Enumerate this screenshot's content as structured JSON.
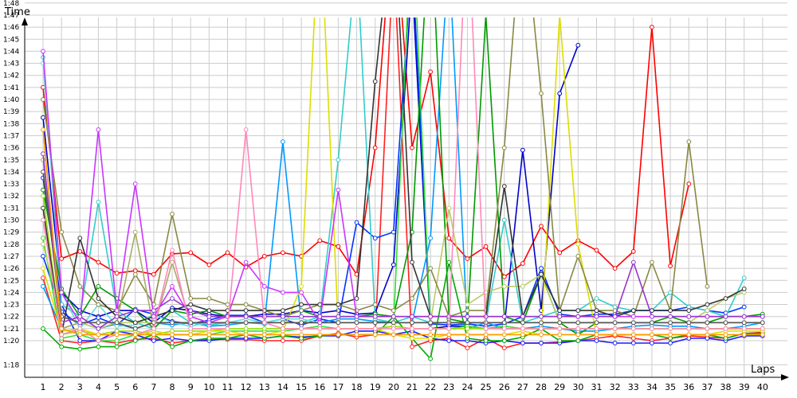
{
  "chart_data": {
    "type": "line",
    "y_axis_title": "Time",
    "x_axis_title": "Laps",
    "grid": true,
    "legend": "none",
    "x": [
      1,
      2,
      3,
      4,
      5,
      6,
      7,
      8,
      9,
      10,
      11,
      12,
      13,
      14,
      15,
      16,
      17,
      18,
      19,
      20,
      21,
      22,
      23,
      24,
      25,
      26,
      27,
      28,
      29,
      30,
      31,
      32,
      33,
      34,
      35,
      36,
      37,
      38,
      39,
      40
    ],
    "x_tick_labels": [
      "1",
      "2",
      "3",
      "4",
      "5",
      "6",
      "7",
      "8",
      "9",
      "10",
      "11",
      "12",
      "13",
      "14",
      "15",
      "16",
      "17",
      "18",
      "19",
      "20",
      "21",
      "22",
      "23",
      "24",
      "25",
      "26",
      "27",
      "28",
      "29",
      "30",
      "31",
      "32",
      "33",
      "34",
      "35",
      "36",
      "37",
      "38",
      "39",
      "40"
    ],
    "y_unit": "seconds",
    "ylim": [
      76,
      110
    ],
    "y_ticks": [
      78,
      80,
      81,
      82,
      83,
      84,
      85,
      86,
      87,
      88,
      89,
      90,
      91,
      92,
      93,
      94,
      95,
      96,
      97,
      98,
      99,
      100,
      101,
      102,
      103,
      104,
      105,
      106,
      107,
      108
    ],
    "y_tick_labels": [
      "1:18",
      "1:20",
      "1:21",
      "1:22",
      "1:23",
      "1:24",
      "1:25",
      "1:26",
      "1:27",
      "1:28",
      "1:29",
      "1:30",
      "1:31",
      "1:32",
      "1:33",
      "1:34",
      "1:35",
      "1:36",
      "1:37",
      "1:38",
      "1:39",
      "1:40",
      "1:41",
      "1:42",
      "1:43",
      "1:44",
      "1:45",
      "1:46",
      "1:47",
      "1:48"
    ],
    "series": [
      {
        "color": "#ff0000",
        "values": [
          101.0,
          86.8,
          87.4,
          86.5,
          85.6,
          85.8,
          85.5,
          87.2,
          87.3,
          86.3,
          87.3,
          86.1,
          87.0,
          87.3,
          87.0,
          88.3,
          87.8,
          85.5,
          96.0,
          116,
          96.0,
          102.3,
          88.5,
          86.8,
          87.8,
          85.3,
          86.4,
          89.5,
          87.3,
          88.3,
          87.5,
          86.0,
          87.4,
          106.0,
          86.2,
          93.0,
          null,
          null,
          null,
          null
        ]
      },
      {
        "color": "#ff2020",
        "values": [
          85.2,
          80.0,
          79.8,
          80.0,
          79.8,
          80.1,
          80.2,
          79.8,
          80.0,
          80.1,
          80.1,
          80.1,
          80.0,
          80.0,
          80.0,
          80.4,
          80.6,
          80.3,
          80.5,
          112,
          79.5,
          80.0,
          80.2,
          79.4,
          80.2,
          79.4,
          79.8,
          79.8,
          79.9,
          80.0,
          80.2,
          80.4,
          80.2,
          80.0,
          80.2,
          80.4,
          80.3,
          80.2,
          80.6,
          80.7
        ]
      },
      {
        "color": "#0000cc",
        "values": [
          98.5,
          84.0,
          82.5,
          82.0,
          82.5,
          82.5,
          81.5,
          82.7,
          82.5,
          82.2,
          82.0,
          82.0,
          82.2,
          82.2,
          82.5,
          82.3,
          82.5,
          82.2,
          82.3,
          86.3,
          110,
          81.0,
          81.2,
          81.2,
          81.0,
          81.2,
          95.8,
          82.5,
          100.5,
          104.5,
          null,
          null,
          null,
          null,
          null,
          null,
          null,
          null,
          null,
          null
        ]
      },
      {
        "color": "#0033ff",
        "values": [
          87.0,
          82.4,
          81.3,
          81.9,
          81.3,
          82.6,
          82.2,
          81.6,
          81.4,
          81.7,
          82.1,
          82.1,
          81.5,
          81.8,
          81.3,
          81.8,
          81.5,
          89.8,
          88.5,
          89.0,
          112,
          81.4,
          81.3,
          81.4,
          81.2,
          81.4,
          82.0,
          86.0,
          82.2,
          82.0,
          82.2,
          82.2,
          82.5,
          82.5,
          82.5,
          82.8,
          82.5,
          82.3,
          82.8,
          null
        ]
      },
      {
        "color": "#1a1aff",
        "values": [
          93.5,
          83.0,
          80.0,
          80.0,
          80.8,
          80.5,
          80.0,
          80.2,
          80.0,
          80.0,
          80.2,
          80.2,
          80.2,
          80.4,
          80.3,
          80.4,
          80.4,
          80.8,
          80.8,
          80.5,
          80.8,
          80.2,
          80.0,
          80.0,
          79.8,
          80.0,
          79.8,
          79.8,
          79.8,
          80.0,
          80.0,
          79.8,
          79.8,
          79.8,
          79.8,
          80.2,
          80.2,
          80.0,
          80.4,
          80.4
        ]
      },
      {
        "color": "#0099ff",
        "values": [
          84.5,
          81.0,
          81.5,
          81.0,
          81.4,
          81.0,
          81.5,
          81.3,
          81.5,
          81.2,
          81.3,
          81.5,
          81.4,
          96.5,
          81.5,
          81.5,
          81.8,
          81.8,
          81.6,
          81.5,
          81.5,
          88.5,
          112,
          81.0,
          81.5,
          81.0,
          81.0,
          81.2,
          81.0,
          80.8,
          80.8,
          81.0,
          81.2,
          81.3,
          81.2,
          81.2,
          81.0,
          81.0,
          81.2,
          81.5
        ]
      },
      {
        "color": "#33cccc",
        "values": [
          103.5,
          83.0,
          82.0,
          91.5,
          82.5,
          81.5,
          81.0,
          82.5,
          81.5,
          81.3,
          81.5,
          81.5,
          81.5,
          81.5,
          81.5,
          82.0,
          95.0,
          112,
          81.8,
          81.5,
          82.0,
          81.5,
          81.5,
          81.5,
          81.5,
          90.0,
          81.5,
          82.0,
          82.5,
          82.5,
          83.5,
          82.8,
          82.5,
          82.5,
          84.0,
          82.8,
          82.5,
          82.0,
          85.2,
          null
        ]
      },
      {
        "color": "#66dddd",
        "values": [
          103.0,
          84.0,
          81.0,
          83.0,
          81.2,
          81.3,
          82.2,
          81.5,
          81.2,
          81.5,
          81.5,
          81.8,
          81.5,
          81.8,
          81.8,
          81.5,
          81.5,
          81.5,
          81.5,
          81.5,
          81.5,
          81.5,
          81.5,
          81.5,
          81.5,
          81.5,
          81.5,
          81.5,
          81.5,
          81.5,
          81.5,
          81.5,
          81.5,
          81.5,
          81.5,
          81.5,
          81.5,
          81.5,
          81.5,
          81.5
        ]
      },
      {
        "color": "#009900",
        "values": [
          92.5,
          84.3,
          82.0,
          84.5,
          83.5,
          82.5,
          81.0,
          82.5,
          82.2,
          82.5,
          82.0,
          82.0,
          82.0,
          82.0,
          82.5,
          82.0,
          82.0,
          82.0,
          82.2,
          82.0,
          89.0,
          116,
          81.8,
          81.5,
          107.0,
          82.0,
          81.5,
          85.5,
          81.5,
          80.5,
          81.5,
          81.5,
          81.5,
          81.5,
          82.0,
          81.5,
          81.5,
          82.0,
          82.0,
          82.2
        ]
      },
      {
        "color": "#00aa00",
        "values": [
          81.0,
          79.5,
          79.3,
          79.5,
          79.5,
          80.0,
          80.5,
          79.5,
          80.0,
          80.2,
          80.2,
          80.5,
          80.2,
          80.4,
          80.2,
          80.4,
          80.5,
          80.5,
          80.5,
          82.0,
          80.2,
          78.5,
          86.5,
          80.2,
          80.0,
          80.0,
          80.3,
          81.0,
          80.0,
          80.0,
          80.5,
          80.5,
          80.5,
          80.5,
          80.2,
          80.5,
          80.5,
          80.2,
          80.6,
          80.6
        ]
      },
      {
        "color": "#33dd33",
        "values": [
          88.5,
          80.2,
          80.5,
          80.0,
          80.0,
          80.5,
          80.8,
          80.5,
          80.5,
          80.5,
          80.8,
          80.8,
          80.8,
          80.8,
          81.0,
          81.2,
          81.0,
          81.0,
          81.0,
          81.2,
          116,
          81.0,
          81.0,
          81.2,
          81.0,
          81.2,
          81.0,
          81.0,
          81.0,
          81.0,
          81.0,
          81.0,
          81.0,
          81.0,
          81.0,
          81.0,
          81.0,
          81.0,
          81.0,
          81.0
        ]
      },
      {
        "color": "#99dd00",
        "values": [
          92.0,
          80.5,
          80.8,
          80.5,
          80.8,
          80.8,
          80.5,
          80.8,
          80.8,
          80.8,
          81.0,
          81.0,
          81.0,
          81.0,
          81.0,
          81.0,
          81.0,
          81.0,
          81.0,
          81.2,
          81.0,
          81.0,
          81.0,
          81.0,
          81.0,
          81.0,
          81.0,
          81.0,
          81.0,
          81.0,
          81.0,
          81.0,
          81.0,
          81.0,
          81.0,
          81.0,
          81.0,
          81.0,
          81.0,
          81.0
        ]
      },
      {
        "color": "#dddd00",
        "values": [
          86.0,
          80.8,
          81.0,
          80.5,
          80.5,
          80.5,
          80.8,
          80.5,
          80.5,
          80.8,
          80.8,
          80.5,
          80.5,
          80.8,
          84.5,
          116,
          81.0,
          81.0,
          81.0,
          80.5,
          80.2,
          80.2,
          80.5,
          80.5,
          80.5,
          80.5,
          80.8,
          80.5,
          107.0,
          88.0,
          80.5,
          80.5,
          80.5,
          80.5,
          80.5,
          80.5,
          80.5,
          80.8,
          80.8,
          80.8
        ]
      },
      {
        "color": "#bbcc66",
        "values": [
          88.0,
          82.0,
          81.5,
          81.0,
          81.5,
          81.5,
          81.5,
          81.5,
          81.5,
          81.5,
          81.5,
          81.5,
          81.5,
          81.5,
          81.5,
          81.5,
          81.5,
          81.5,
          81.5,
          81.5,
          81.5,
          81.5,
          91.0,
          83.0,
          84.0,
          84.5,
          84.5,
          85.5,
          81.5,
          81.5,
          81.5,
          81.5,
          81.5,
          81.5,
          81.5,
          81.5,
          82.5,
          83.5,
          84.0,
          null
        ]
      },
      {
        "color": "#888844",
        "values": [
          100.0,
          89.0,
          84.5,
          83.0,
          82.5,
          85.5,
          83.0,
          90.5,
          83.5,
          83.5,
          83.0,
          83.0,
          82.5,
          82.0,
          82.5,
          83.0,
          83.0,
          82.5,
          83.0,
          82.5,
          83.5,
          86.0,
          82.0,
          82.5,
          82.5,
          96.0,
          116,
          100.5,
          82.5,
          87.0,
          82.5,
          82.5,
          82.0,
          86.5,
          82.5,
          96.5,
          84.5,
          null,
          null,
          null
        ]
      },
      {
        "color": "#aaaa66",
        "values": [
          95.0,
          81.0,
          81.5,
          81.5,
          81.5,
          89.0,
          81.0,
          86.5,
          81.5,
          81.5,
          81.5,
          81.5,
          81.5,
          81.5,
          81.5,
          81.5,
          81.5,
          81.5,
          81.5,
          81.5,
          81.5,
          81.5,
          81.5,
          81.5,
          81.5,
          81.5,
          81.5,
          81.5,
          81.5,
          81.5,
          81.5,
          81.5,
          81.5,
          81.5,
          81.5,
          81.5,
          81.5,
          81.5,
          81.5,
          81.5
        ]
      },
      {
        "color": "#333333",
        "values": [
          91.0,
          80.5,
          88.5,
          83.5,
          82.0,
          81.5,
          82.0,
          82.5,
          83.0,
          82.5,
          82.5,
          82.5,
          82.5,
          82.5,
          83.0,
          83.0,
          83.0,
          83.5,
          101.5,
          116,
          86.5,
          82.0,
          82.0,
          82.0,
          82.0,
          92.8,
          82.0,
          85.5,
          82.5,
          82.5,
          82.5,
          82.0,
          82.5,
          82.5,
          82.5,
          82.5,
          83.0,
          83.5,
          84.3,
          null
        ]
      },
      {
        "color": "#555555",
        "values": [
          94.0,
          82.0,
          81.5,
          81.5,
          81.5,
          81.0,
          81.5,
          81.5,
          81.5,
          81.5,
          81.5,
          81.5,
          81.5,
          81.5,
          81.5,
          81.5,
          81.5,
          81.5,
          81.5,
          81.5,
          81.5,
          81.5,
          81.5,
          81.5,
          81.5,
          81.5,
          81.5,
          81.5,
          81.5,
          81.5,
          81.5,
          81.5,
          81.5,
          81.5,
          81.5,
          81.5,
          81.5,
          81.5,
          81.5,
          81.5
        ]
      },
      {
        "color": "#cc33ff",
        "values": [
          104.0,
          84.0,
          81.5,
          97.5,
          82.5,
          93.0,
          82.0,
          84.5,
          82.0,
          81.5,
          82.0,
          86.5,
          84.5,
          84.0,
          84.0,
          81.5,
          92.5,
          82.0,
          82.0,
          82.0,
          82.0,
          82.0,
          82.0,
          82.0,
          82.0,
          82.0,
          82.0,
          82.0,
          82.0,
          82.0,
          82.0,
          82.0,
          82.0,
          82.0,
          82.0,
          82.0,
          82.0,
          82.0,
          82.0,
          82.0
        ]
      },
      {
        "color": "#9933cc",
        "values": [
          95.5,
          81.5,
          82.0,
          81.0,
          82.0,
          82.5,
          82.5,
          83.5,
          82.5,
          82.0,
          82.0,
          82.0,
          82.0,
          82.0,
          82.0,
          82.0,
          82.0,
          82.0,
          82.0,
          82.0,
          82.0,
          82.0,
          82.0,
          82.0,
          82.0,
          82.0,
          82.0,
          82.0,
          82.0,
          82.0,
          82.0,
          82.0,
          86.5,
          82.0,
          82.0,
          82.0,
          82.0,
          82.0,
          82.0,
          82.0
        ]
      },
      {
        "color": "#ff88bb",
        "values": [
          90.0,
          80.5,
          81.0,
          80.0,
          80.5,
          80.5,
          81.0,
          87.5,
          81.0,
          81.0,
          81.0,
          97.5,
          81.5,
          81.0,
          81.0,
          81.0,
          81.0,
          81.0,
          81.0,
          81.0,
          81.0,
          81.0,
          81.0,
          116,
          81.0,
          81.0,
          81.0,
          81.0,
          81.0,
          81.0,
          81.0,
          81.0,
          81.0,
          81.0,
          81.0,
          81.0,
          81.0,
          81.0,
          81.0,
          81.0
        ]
      },
      {
        "color": "#ff9900",
        "values": [
          97.5,
          81.0,
          80.5,
          80.5,
          80.5,
          80.5,
          80.5,
          80.5,
          80.5,
          80.5,
          80.5,
          80.5,
          80.5,
          80.5,
          80.5,
          80.5,
          80.5,
          80.5,
          80.5,
          80.5,
          80.5,
          80.5,
          80.5,
          80.5,
          80.5,
          80.5,
          80.5,
          80.5,
          80.5,
          80.5,
          80.5,
          80.5,
          80.5,
          80.5,
          80.5,
          80.5,
          80.5,
          80.5,
          80.5,
          80.5
        ]
      }
    ]
  }
}
